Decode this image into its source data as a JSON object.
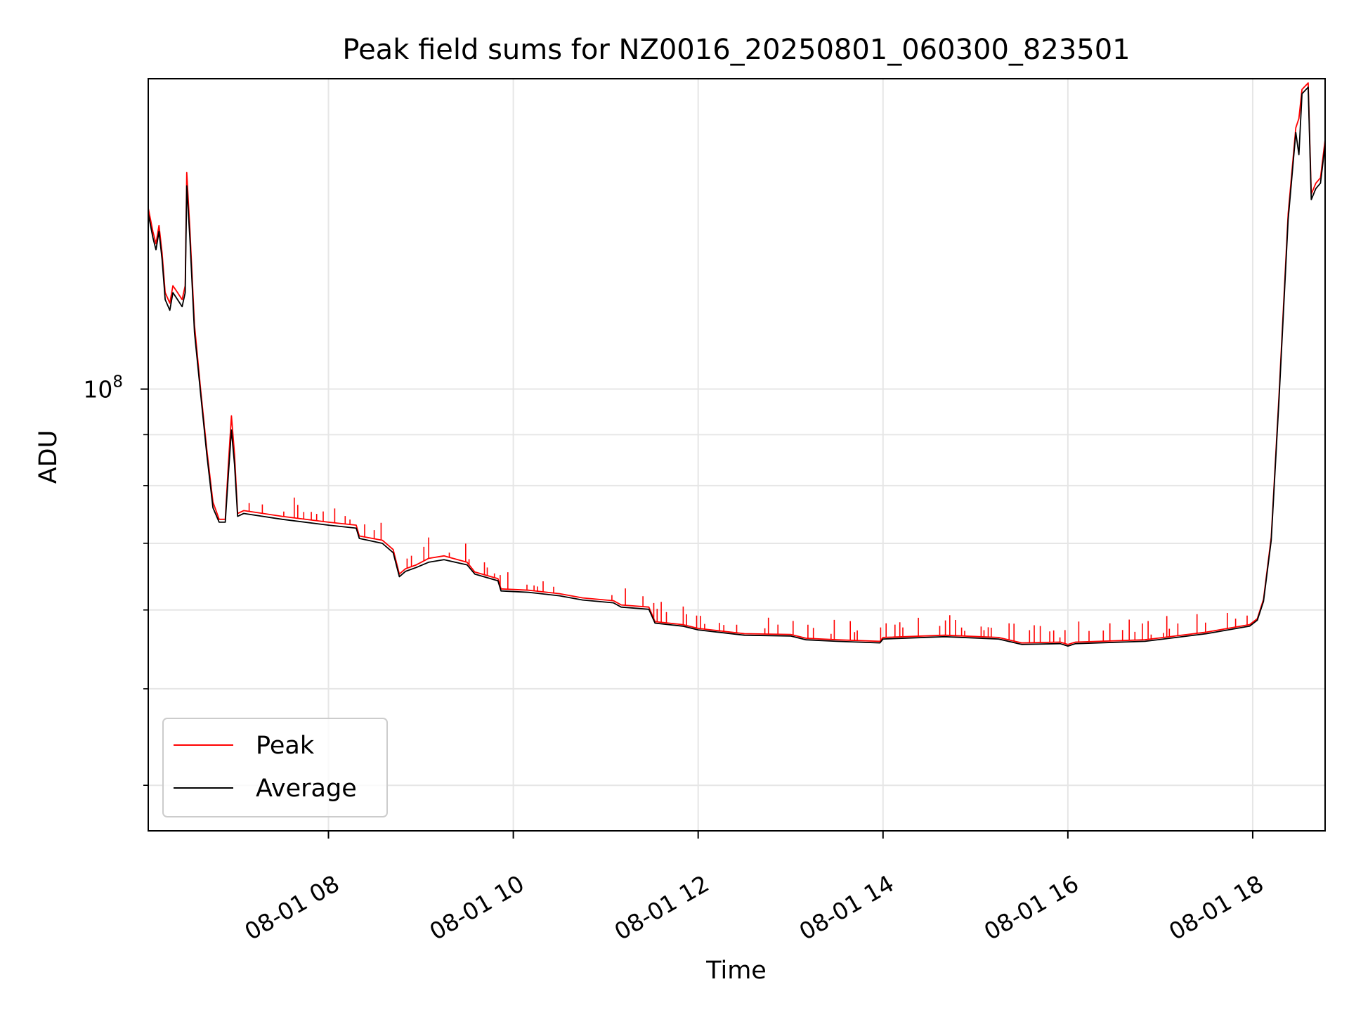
{
  "chart_data": {
    "type": "line",
    "title": "Peak field sums for NZ0016_20250801_060300_823501",
    "xlabel": "Time",
    "ylabel": "ADU",
    "y_scale": "log",
    "ylim": [
      36000000,
      205000000
    ],
    "xlim": [
      "08-01 06:03",
      "08-01 18:47"
    ],
    "y_ticks": [
      {
        "value": 100000000,
        "base": "10",
        "exp": "8"
      }
    ],
    "y_minor_ticks": [
      40000000,
      50000000,
      60000000,
      70000000,
      80000000,
      90000000
    ],
    "x_ticks": [
      {
        "t": "08-01 08:00",
        "label": "08-01 08"
      },
      {
        "t": "08-01 10:00",
        "label": "08-01 10"
      },
      {
        "t": "08-01 12:00",
        "label": "08-01 12"
      },
      {
        "t": "08-01 14:00",
        "label": "08-01 14"
      },
      {
        "t": "08-01 16:00",
        "label": "08-01 16"
      },
      {
        "t": "08-01 18:00",
        "label": "08-01 18"
      }
    ],
    "grid": true,
    "legend_position": "lower-left",
    "series": [
      {
        "name": "Peak",
        "color": "#ff0000",
        "points": [
          [
            "08-01 06:03",
            152000000
          ],
          [
            "08-01 06:06",
            144000000
          ],
          [
            "08-01 06:08",
            140000000
          ],
          [
            "08-01 06:10",
            146000000
          ],
          [
            "08-01 06:12",
            137000000
          ],
          [
            "08-01 06:14",
            125000000
          ],
          [
            "08-01 06:17",
            122000000
          ],
          [
            "08-01 06:19",
            127000000
          ],
          [
            "08-01 06:22",
            125000000
          ],
          [
            "08-01 06:25",
            123000000
          ],
          [
            "08-01 06:27",
            127000000
          ],
          [
            "08-01 06:28",
            165000000
          ],
          [
            "08-01 06:30",
            145000000
          ],
          [
            "08-01 06:33",
            116000000
          ],
          [
            "08-01 06:37",
            100000000
          ],
          [
            "08-01 06:41",
            87000000
          ],
          [
            "08-01 06:45",
            77000000
          ],
          [
            "08-01 06:49",
            74000000
          ],
          [
            "08-01 06:53",
            74000000
          ],
          [
            "08-01 06:55",
            84000000
          ],
          [
            "08-01 06:57",
            94000000
          ],
          [
            "08-01 06:59",
            86000000
          ],
          [
            "08-01 07:01",
            75000000
          ],
          [
            "08-01 07:05",
            75500000
          ],
          [
            "08-01 07:30",
            74500000
          ],
          [
            "08-01 08:00",
            73500000
          ],
          [
            "08-01 08:18",
            73000000
          ],
          [
            "08-01 08:20",
            71200000
          ],
          [
            "08-01 08:35",
            70500000
          ],
          [
            "08-01 08:42",
            69000000
          ],
          [
            "08-01 08:46",
            65200000
          ],
          [
            "08-01 08:50",
            66000000
          ],
          [
            "08-01 08:57",
            66600000
          ],
          [
            "08-01 09:05",
            67600000
          ],
          [
            "08-01 09:15",
            68000000
          ],
          [
            "08-01 09:30",
            67000000
          ],
          [
            "08-01 09:35",
            65500000
          ],
          [
            "08-01 09:50",
            64500000
          ],
          [
            "08-01 09:52",
            63000000
          ],
          [
            "08-01 10:10",
            62800000
          ],
          [
            "08-01 10:30",
            62300000
          ],
          [
            "08-01 10:45",
            61700000
          ],
          [
            "08-01 11:05",
            61300000
          ],
          [
            "08-01 11:10",
            60700000
          ],
          [
            "08-01 11:28",
            60400000
          ],
          [
            "08-01 11:32",
            58400000
          ],
          [
            "08-01 11:50",
            58000000
          ],
          [
            "08-01 12:00",
            57500000
          ],
          [
            "08-01 12:30",
            56800000
          ],
          [
            "08-01 13:00",
            56700000
          ],
          [
            "08-01 13:10",
            56200000
          ],
          [
            "08-01 13:30",
            56000000
          ],
          [
            "08-01 13:58",
            55800000
          ],
          [
            "08-01 14:00",
            56300000
          ],
          [
            "08-01 14:40",
            56600000
          ],
          [
            "08-01 15:15",
            56300000
          ],
          [
            "08-01 15:30",
            55600000
          ],
          [
            "08-01 15:55",
            55700000
          ],
          [
            "08-01 16:00",
            55400000
          ],
          [
            "08-01 16:05",
            55700000
          ],
          [
            "08-01 16:50",
            56000000
          ],
          [
            "08-01 17:30",
            57000000
          ],
          [
            "08-01 17:58",
            58000000
          ],
          [
            "08-01 18:03",
            58800000
          ],
          [
            "08-01 18:07",
            61500000
          ],
          [
            "08-01 18:12",
            71000000
          ],
          [
            "08-01 18:17",
            98000000
          ],
          [
            "08-01 18:23",
            150000000
          ],
          [
            "08-01 18:28",
            183000000
          ],
          [
            "08-01 18:30",
            187000000
          ],
          [
            "08-01 18:32",
            200000000
          ],
          [
            "08-01 18:36",
            203000000
          ],
          [
            "08-01 18:38",
            157000000
          ],
          [
            "08-01 18:41",
            161000000
          ],
          [
            "08-01 18:44",
            163000000
          ],
          [
            "08-01 18:47",
            178000000
          ]
        ]
      },
      {
        "name": "Average",
        "color": "#000000",
        "points": [
          [
            "08-01 06:03",
            150000000
          ],
          [
            "08-01 06:06",
            142000000
          ],
          [
            "08-01 06:08",
            138000000
          ],
          [
            "08-01 06:10",
            144000000
          ],
          [
            "08-01 06:12",
            135000000
          ],
          [
            "08-01 06:14",
            123000000
          ],
          [
            "08-01 06:17",
            120000000
          ],
          [
            "08-01 06:19",
            125000000
          ],
          [
            "08-01 06:22",
            123000000
          ],
          [
            "08-01 06:25",
            121000000
          ],
          [
            "08-01 06:27",
            125000000
          ],
          [
            "08-01 06:28",
            160000000
          ],
          [
            "08-01 06:30",
            142000000
          ],
          [
            "08-01 06:33",
            114000000
          ],
          [
            "08-01 06:37",
            99000000
          ],
          [
            "08-01 06:41",
            86000000
          ],
          [
            "08-01 06:45",
            76000000
          ],
          [
            "08-01 06:49",
            73500000
          ],
          [
            "08-01 06:53",
            73500000
          ],
          [
            "08-01 06:55",
            82000000
          ],
          [
            "08-01 06:57",
            91000000
          ],
          [
            "08-01 06:59",
            84000000
          ],
          [
            "08-01 07:01",
            74500000
          ],
          [
            "08-01 07:05",
            75000000
          ],
          [
            "08-01 07:30",
            74000000
          ],
          [
            "08-01 08:00",
            73000000
          ],
          [
            "08-01 08:18",
            72500000
          ],
          [
            "08-01 08:20",
            70800000
          ],
          [
            "08-01 08:35",
            70000000
          ],
          [
            "08-01 08:42",
            68500000
          ],
          [
            "08-01 08:46",
            64800000
          ],
          [
            "08-01 08:50",
            65600000
          ],
          [
            "08-01 08:57",
            66200000
          ],
          [
            "08-01 09:05",
            67000000
          ],
          [
            "08-01 09:15",
            67400000
          ],
          [
            "08-01 09:30",
            66600000
          ],
          [
            "08-01 09:35",
            65200000
          ],
          [
            "08-01 09:50",
            64200000
          ],
          [
            "08-01 09:52",
            62700000
          ],
          [
            "08-01 10:10",
            62500000
          ],
          [
            "08-01 10:30",
            62000000
          ],
          [
            "08-01 10:45",
            61400000
          ],
          [
            "08-01 11:05",
            61000000
          ],
          [
            "08-01 11:10",
            60400000
          ],
          [
            "08-01 11:28",
            60100000
          ],
          [
            "08-01 11:32",
            58200000
          ],
          [
            "08-01 11:50",
            57800000
          ],
          [
            "08-01 12:00",
            57300000
          ],
          [
            "08-01 12:30",
            56600000
          ],
          [
            "08-01 13:00",
            56500000
          ],
          [
            "08-01 13:10",
            56000000
          ],
          [
            "08-01 13:30",
            55800000
          ],
          [
            "08-01 13:58",
            55600000
          ],
          [
            "08-01 14:00",
            56100000
          ],
          [
            "08-01 14:40",
            56400000
          ],
          [
            "08-01 15:15",
            56100000
          ],
          [
            "08-01 15:30",
            55400000
          ],
          [
            "08-01 15:55",
            55500000
          ],
          [
            "08-01 16:00",
            55200000
          ],
          [
            "08-01 16:05",
            55500000
          ],
          [
            "08-01 16:50",
            55800000
          ],
          [
            "08-01 17:30",
            56800000
          ],
          [
            "08-01 17:58",
            57800000
          ],
          [
            "08-01 18:03",
            58600000
          ],
          [
            "08-01 18:07",
            61200000
          ],
          [
            "08-01 18:12",
            70500000
          ],
          [
            "08-01 18:17",
            97000000
          ],
          [
            "08-01 18:23",
            148000000
          ],
          [
            "08-01 18:28",
            181000000
          ],
          [
            "08-01 18:30",
            172000000
          ],
          [
            "08-01 18:32",
            198000000
          ],
          [
            "08-01 18:36",
            201000000
          ],
          [
            "08-01 18:38",
            155000000
          ],
          [
            "08-01 18:41",
            159000000
          ],
          [
            "08-01 18:44",
            161000000
          ],
          [
            "08-01 18:47",
            176000000
          ]
        ]
      }
    ]
  }
}
